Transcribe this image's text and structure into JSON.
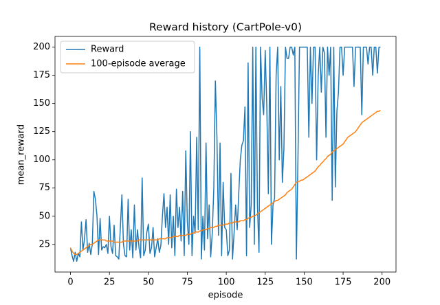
{
  "chart_data": {
    "type": "line",
    "title": "Reward history (CartPole-v0)",
    "x_label": "episode",
    "y_label": "mean_reward",
    "x": [
      0,
      1,
      2,
      3,
      4,
      5,
      6,
      7,
      8,
      9,
      10,
      11,
      12,
      13,
      14,
      15,
      16,
      17,
      18,
      19,
      20,
      21,
      22,
      23,
      24,
      25,
      26,
      27,
      28,
      29,
      30,
      31,
      32,
      33,
      34,
      35,
      36,
      37,
      38,
      39,
      40,
      41,
      42,
      43,
      44,
      45,
      46,
      47,
      48,
      49,
      50,
      51,
      52,
      53,
      54,
      55,
      56,
      57,
      58,
      59,
      60,
      61,
      62,
      63,
      64,
      65,
      66,
      67,
      68,
      69,
      70,
      71,
      72,
      73,
      74,
      75,
      76,
      77,
      78,
      79,
      80,
      81,
      82,
      83,
      84,
      85,
      86,
      87,
      88,
      89,
      90,
      91,
      92,
      93,
      94,
      95,
      96,
      97,
      98,
      99,
      100,
      101,
      102,
      103,
      104,
      105,
      106,
      107,
      108,
      109,
      110,
      111,
      112,
      113,
      114,
      115,
      116,
      117,
      118,
      119,
      120,
      121,
      122,
      123,
      124,
      125,
      126,
      127,
      128,
      129,
      130,
      131,
      132,
      133,
      134,
      135,
      136,
      137,
      138,
      139,
      140,
      141,
      142,
      143,
      144,
      145,
      146,
      147,
      148,
      149,
      150,
      151,
      152,
      153,
      154,
      155,
      156,
      157,
      158,
      159,
      160,
      161,
      162,
      163,
      164,
      165,
      166,
      167,
      168,
      169,
      170,
      171,
      172,
      173,
      174,
      175,
      176,
      177,
      178,
      179,
      180,
      181,
      182,
      183,
      184,
      185,
      186,
      187,
      188,
      189,
      190,
      191,
      192,
      193,
      194,
      195,
      196,
      197,
      198,
      199
    ],
    "series": [
      {
        "name": "Reward",
        "color": "#1f77b4",
        "values": [
          22,
          15,
          10,
          18,
          10,
          17,
          14,
          45,
          20,
          30,
          47,
          18,
          26,
          16,
          25,
          72,
          65,
          50,
          16,
          48,
          20,
          23,
          22,
          25,
          17,
          50,
          23,
          17,
          42,
          15,
          14,
          12,
          40,
          69,
          25,
          15,
          14,
          65,
          20,
          38,
          13,
          60,
          20,
          38,
          22,
          13,
          84,
          15,
          20,
          36,
          43,
          17,
          22,
          40,
          14,
          22,
          30,
          18,
          24,
          50,
          70,
          40,
          58,
          25,
          69,
          22,
          50,
          15,
          74,
          40,
          58,
          28,
          72,
          15,
          108,
          45,
          25,
          125,
          15,
          50,
          35,
          120,
          38,
          200,
          12,
          50,
          20,
          115,
          30,
          60,
          14,
          35,
          75,
          170,
          120,
          33,
          115,
          15,
          80,
          40,
          38,
          15,
          20,
          88,
          12,
          35,
          60,
          38,
          70,
          100,
          113,
          117,
          147,
          15,
          186,
          40,
          60,
          200,
          25,
          200,
          60,
          18,
          200,
          155,
          140,
          197,
          148,
          70,
          200,
          25,
          60,
          66,
          175,
          200,
          100,
          165,
          80,
          110,
          200,
          190,
          190,
          200,
          200,
          193,
          200,
          12,
          100,
          200,
          200,
          200,
          200,
          200,
          200,
          120,
          200,
          150,
          200,
          200,
          100,
          175,
          200,
          160,
          200,
          195,
          120,
          200,
          175,
          200,
          64,
          200,
          76,
          143,
          160,
          200,
          200,
          175,
          200,
          200,
          200,
          200,
          200,
          200,
          165,
          200,
          200,
          200,
          200,
          140,
          200,
          200,
          200,
          185,
          200,
          200,
          175,
          200,
          200,
          177,
          200,
          200
        ]
      },
      {
        "name": "100-episode average",
        "color": "#ff7f0e",
        "values": [
          22,
          19,
          17,
          16,
          16,
          17,
          18,
          19,
          20,
          21,
          22,
          23,
          24,
          25,
          25,
          26,
          27,
          28,
          29,
          29,
          29,
          29,
          29,
          28,
          28,
          28,
          28,
          28,
          27,
          27,
          27,
          27,
          27,
          27,
          28,
          28,
          28,
          28,
          28,
          28,
          28,
          28,
          28,
          28,
          29,
          29,
          29,
          29,
          29,
          29,
          29,
          29,
          29,
          29,
          29,
          29,
          29,
          30,
          30,
          30,
          30,
          30,
          31,
          31,
          31,
          31,
          32,
          32,
          32,
          32,
          33,
          33,
          33,
          33,
          33,
          34,
          34,
          34,
          35,
          35,
          36,
          36,
          36,
          37,
          37,
          38,
          38,
          38,
          39,
          39,
          40,
          40,
          40,
          41,
          41,
          42,
          42,
          42,
          42,
          43,
          43,
          43,
          44,
          44,
          44,
          45,
          45,
          45,
          45,
          46,
          46,
          46,
          47,
          47,
          48,
          49,
          49,
          50,
          50,
          51,
          52,
          53,
          54,
          55,
          56,
          57,
          58,
          59,
          60,
          61,
          62,
          63,
          64,
          64,
          65,
          66,
          67,
          68,
          69,
          71,
          72,
          73,
          74,
          76,
          78,
          80,
          81,
          81,
          82,
          82,
          83,
          84,
          85,
          86,
          87,
          88,
          89,
          90,
          92,
          94,
          95,
          97,
          98,
          100,
          101,
          103,
          104,
          105,
          107,
          108,
          109,
          110,
          111,
          112,
          113,
          114,
          116,
          118,
          120,
          121,
          122,
          123,
          124,
          125,
          127,
          129,
          131,
          133,
          134,
          135,
          136,
          137,
          138,
          139,
          140,
          141,
          142,
          143,
          143,
          144
        ]
      }
    ],
    "xlim": [
      -9.95,
      208.95
    ],
    "ylim": [
      0.5,
      209.5
    ],
    "xticks": [
      0,
      25,
      50,
      75,
      100,
      125,
      150,
      175,
      200
    ],
    "yticks": [
      25,
      50,
      75,
      100,
      125,
      150,
      175,
      200
    ],
    "legend": "upper left"
  }
}
